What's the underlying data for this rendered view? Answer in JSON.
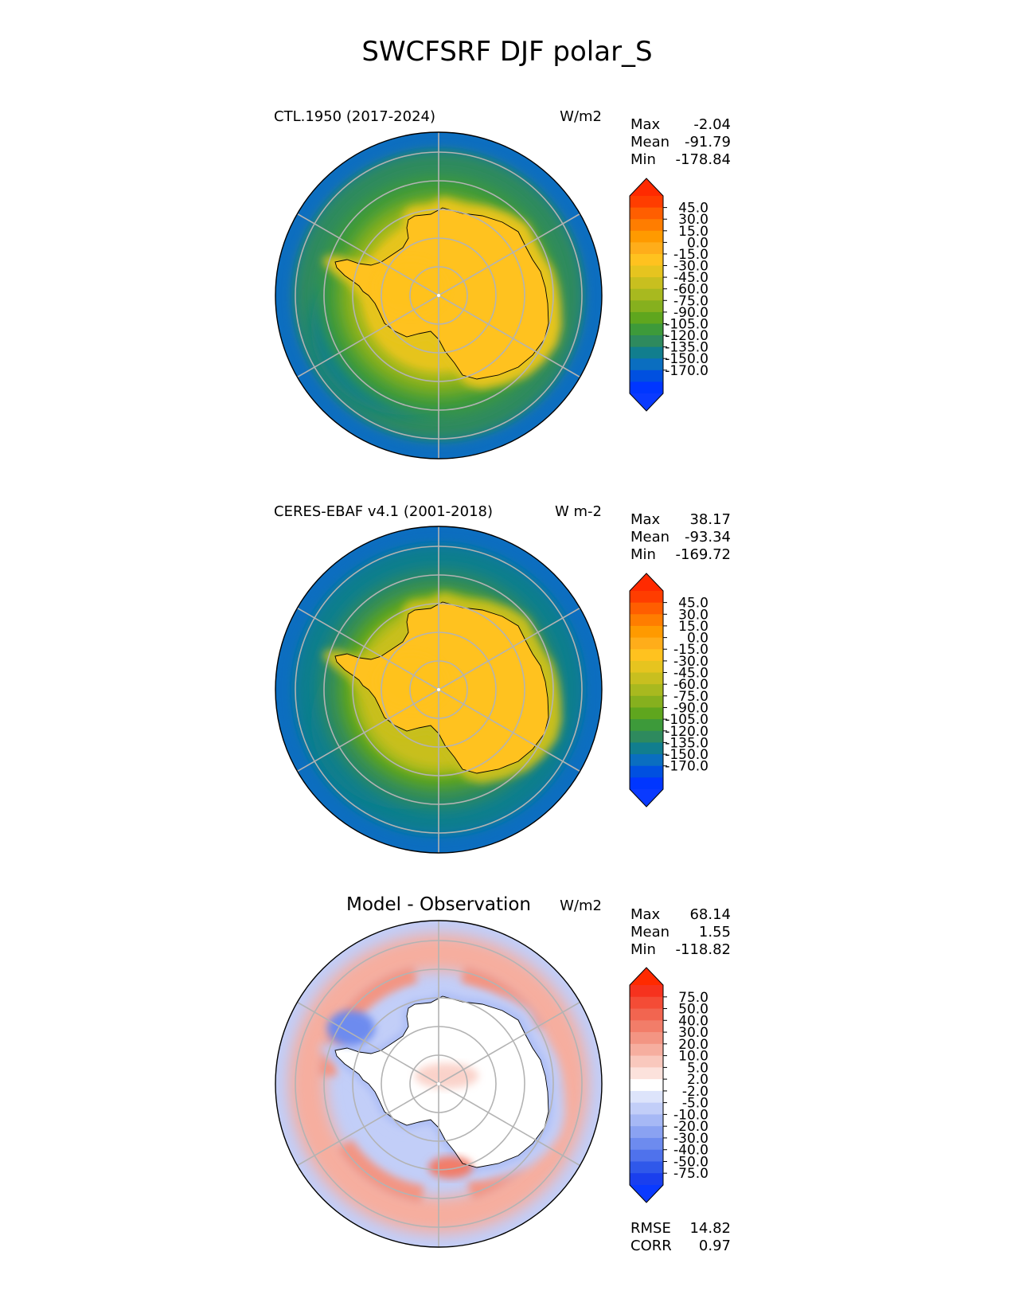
{
  "figure_title": "SWCFSRF DJF polar_S",
  "chart_data": [
    {
      "type": "heatmap",
      "projection": "south-polar-stereographic",
      "title_left": "CTL.1950 (2017-2024)",
      "units": "W/m2",
      "stats": [
        {
          "label": "Max",
          "value": "-2.04"
        },
        {
          "label": "Mean",
          "value": "-91.79"
        },
        {
          "label": "Min",
          "value": "-178.84"
        }
      ],
      "colorbar": {
        "extend": "both",
        "ticks": [
          "45.0",
          "30.0",
          "15.0",
          "0.0",
          "-15.0",
          "-30.0",
          "-45.0",
          "-60.0",
          "-75.0",
          "-90.0",
          "-105.0",
          "-120.0",
          "-135.0",
          "-150.0",
          "-170.0"
        ],
        "colors": [
          "#ff3d00",
          "#ff5e00",
          "#ff7d00",
          "#ff9a00",
          "#ffad1a",
          "#ffc21f",
          "#e6c41f",
          "#c8bf1f",
          "#a8b91f",
          "#86b01e",
          "#5fa61e",
          "#3d9a3a",
          "#2e8a5e",
          "#117e8e",
          "#0a6ec0",
          "#0050e0",
          "#0036ff"
        ],
        "over_color": "#ff2a00",
        "under_color": "#0a3aff"
      },
      "field": {
        "continent_value": -25,
        "coastal_zone": -45,
        "pack_zone": -90,
        "mid_ocean": -130,
        "outer_ocean": -160
      }
    },
    {
      "type": "heatmap",
      "projection": "south-polar-stereographic",
      "title_left": "CERES-EBAF v4.1 (2001-2018)",
      "units": "W m-2",
      "stats": [
        {
          "label": "Max",
          "value": "38.17"
        },
        {
          "label": "Mean",
          "value": "-93.34"
        },
        {
          "label": "Min",
          "value": "-169.72"
        }
      ],
      "colorbar": {
        "extend": "both",
        "ticks": [
          "45.0",
          "30.0",
          "15.0",
          "0.0",
          "-15.0",
          "-30.0",
          "-45.0",
          "-60.0",
          "-75.0",
          "-90.0",
          "-105.0",
          "-120.0",
          "-135.0",
          "-150.0",
          "-170.0"
        ],
        "colors": [
          "#ff3d00",
          "#ff5e00",
          "#ff7d00",
          "#ff9a00",
          "#ffad1a",
          "#ffc21f",
          "#e6c41f",
          "#c8bf1f",
          "#a8b91f",
          "#86b01e",
          "#5fa61e",
          "#3d9a3a",
          "#2e8a5e",
          "#117e8e",
          "#0a6ec0",
          "#0050e0",
          "#0036ff"
        ],
        "over_color": "#ff2a00",
        "under_color": "#0a3aff"
      },
      "field": {
        "continent_value": -20,
        "coastal_zone": -50,
        "pack_zone": -100,
        "mid_ocean": -140,
        "outer_ocean": -158
      }
    },
    {
      "type": "heatmap",
      "projection": "south-polar-stereographic",
      "title_center": "Model - Observation",
      "units": "W/m2",
      "stats": [
        {
          "label": "Max",
          "value": "68.14"
        },
        {
          "label": "Mean",
          "value": "1.55"
        },
        {
          "label": "Min",
          "value": "-118.82"
        }
      ],
      "metrics": [
        {
          "label": "RMSE",
          "value": "14.82"
        },
        {
          "label": "CORR",
          "value": "0.97"
        }
      ],
      "colorbar": {
        "extend": "both",
        "ticks": [
          "75.0",
          "50.0",
          "40.0",
          "30.0",
          "20.0",
          "10.0",
          "5.0",
          "2.0",
          "-2.0",
          "-5.0",
          "-10.0",
          "-20.0",
          "-30.0",
          "-40.0",
          "-50.0",
          "-75.0"
        ],
        "colors": [
          "#f6321e",
          "#f44c36",
          "#f26550",
          "#f27d69",
          "#f39583",
          "#f6ae9f",
          "#f9c8bd",
          "#fce2dc",
          "#ffffff",
          "#dde4fb",
          "#c2cef8",
          "#a6b8f5",
          "#8aa2f2",
          "#6d8bef",
          "#4f72ec",
          "#2f58ea",
          "#1a3fee"
        ],
        "over_color": "#ff2a00",
        "under_color": "#0a3aff"
      },
      "field": {
        "continent_value": 0,
        "coastal_ring": -20,
        "sea_ice_ring": 25,
        "outer_ocean": -8
      }
    }
  ]
}
